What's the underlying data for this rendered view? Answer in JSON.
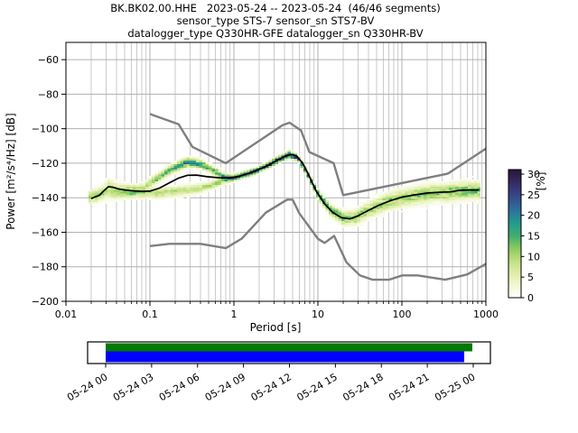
{
  "title": {
    "line1": "BK.BK02.00.HHE   2023-05-24 -- 2023-05-24  (46/46 segments)",
    "line2": "sensor_type STS-7 sensor_sn STS7-BV",
    "line3": "datalogger_type Q330HR-GFE datalogger_sn Q330HR-BV"
  },
  "chart_data": {
    "type": "heatmap",
    "title": "BK.BK02.00.HHE   2023-05-24 -- 2023-05-24  (46/46 segments)",
    "xlabel": "Period [s]",
    "ylabel": "Power [m²/s⁴/Hz] [dB]",
    "x_scale": "log",
    "xlim": [
      0.01,
      1000
    ],
    "ylim": [
      -200,
      -50
    ],
    "grid": "major-y, major+minor-x",
    "x_ticks": [
      {
        "v": 0.01,
        "label": "0.01"
      },
      {
        "v": 0.1,
        "label": "0.1"
      },
      {
        "v": 1,
        "label": "1"
      },
      {
        "v": 10,
        "label": "10"
      },
      {
        "v": 100,
        "label": "100"
      },
      {
        "v": 1000,
        "label": "1000"
      }
    ],
    "y_ticks": [
      {
        "v": -60,
        "label": "−60"
      },
      {
        "v": -80,
        "label": "−80"
      },
      {
        "v": -100,
        "label": "−100"
      },
      {
        "v": -120,
        "label": "−120"
      },
      {
        "v": -140,
        "label": "−140"
      },
      {
        "v": -160,
        "label": "−160"
      },
      {
        "v": -180,
        "label": "−180"
      },
      {
        "v": -200,
        "label": "−200"
      }
    ],
    "colorbar": {
      "label": "[%]",
      "vmax": 31.1,
      "ticks": [
        {
          "v": 0,
          "label": "0"
        },
        {
          "v": 5,
          "label": "5"
        },
        {
          "v": 10,
          "label": "10"
        },
        {
          "v": 15,
          "label": "15"
        },
        {
          "v": 20,
          "label": "20"
        },
        {
          "v": 25,
          "label": "25"
        },
        {
          "v": 30,
          "label": "30"
        }
      ],
      "stops": [
        [
          0,
          "#ffffff"
        ],
        [
          3,
          "#f2f7d4"
        ],
        [
          6,
          "#dfeda8"
        ],
        [
          9,
          "#bfe080"
        ],
        [
          12,
          "#8cca60"
        ],
        [
          15,
          "#3fae6f"
        ],
        [
          18,
          "#259b8b"
        ],
        [
          21,
          "#2d759c"
        ],
        [
          24,
          "#35508e"
        ],
        [
          27,
          "#383273"
        ],
        [
          31.1,
          "#2a1535"
        ]
      ]
    },
    "noise_models": {
      "color": "#7f7f7f",
      "nhnm": [
        [
          0.1,
          -91.5
        ],
        [
          0.22,
          -97.4
        ],
        [
          0.32,
          -110.5
        ],
        [
          0.8,
          -120.0
        ],
        [
          3.8,
          -98.0
        ],
        [
          4.6,
          -96.5
        ],
        [
          6.3,
          -101.0
        ],
        [
          7.9,
          -113.5
        ],
        [
          15.4,
          -120.0
        ],
        [
          20.0,
          -138.5
        ],
        [
          354.8,
          -126.0
        ],
        [
          1000,
          -111.5
        ]
      ],
      "nlnm": [
        [
          0.1,
          -168.0
        ],
        [
          0.17,
          -166.7
        ],
        [
          0.4,
          -166.7
        ],
        [
          0.8,
          -169.2
        ],
        [
          1.24,
          -163.7
        ],
        [
          2.4,
          -148.6
        ],
        [
          4.3,
          -141.1
        ],
        [
          5.0,
          -141.1
        ],
        [
          6.0,
          -149.0
        ],
        [
          10.0,
          -163.8
        ],
        [
          12.0,
          -166.2
        ],
        [
          15.6,
          -162.1
        ],
        [
          21.9,
          -177.5
        ],
        [
          31.6,
          -185.0
        ],
        [
          45.0,
          -187.5
        ],
        [
          70.0,
          -187.5
        ],
        [
          101.0,
          -185.0
        ],
        [
          154.0,
          -185.0
        ],
        [
          328.0,
          -187.5
        ],
        [
          600.0,
          -184.4
        ],
        [
          1000,
          -178.3
        ]
      ]
    },
    "mean_line": {
      "color": "#000000",
      "points": [
        [
          0.02,
          -140.5
        ],
        [
          0.022,
          -139.6
        ],
        [
          0.025,
          -138.6
        ],
        [
          0.028,
          -136.2
        ],
        [
          0.032,
          -133.6
        ],
        [
          0.036,
          -133.9
        ],
        [
          0.042,
          -134.9
        ],
        [
          0.05,
          -135.5
        ],
        [
          0.065,
          -136.1
        ],
        [
          0.08,
          -136.3
        ],
        [
          0.1,
          -136.2
        ],
        [
          0.13,
          -134.4
        ],
        [
          0.17,
          -131.4
        ],
        [
          0.22,
          -128.6
        ],
        [
          0.28,
          -127.0
        ],
        [
          0.36,
          -126.9
        ],
        [
          0.48,
          -127.8
        ],
        [
          0.65,
          -128.4
        ],
        [
          0.85,
          -128.5
        ],
        [
          1.1,
          -127.8
        ],
        [
          1.6,
          -125.4
        ],
        [
          2.3,
          -122.3
        ],
        [
          3.2,
          -118.6
        ],
        [
          4.2,
          -115.6
        ],
        [
          4.9,
          -114.9
        ],
        [
          5.6,
          -115.9
        ],
        [
          6.6,
          -120.0
        ],
        [
          7.8,
          -127.0
        ],
        [
          9.5,
          -136.0
        ],
        [
          12,
          -143.5
        ],
        [
          15,
          -148.5
        ],
        [
          19,
          -151.5
        ],
        [
          24,
          -152.3
        ],
        [
          30,
          -150.5
        ],
        [
          40,
          -147.3
        ],
        [
          55,
          -144.0
        ],
        [
          75,
          -141.5
        ],
        [
          100,
          -139.7
        ],
        [
          140,
          -138.4
        ],
        [
          200,
          -137.3
        ],
        [
          280,
          -136.8
        ],
        [
          380,
          -136.6
        ],
        [
          480,
          -135.7
        ],
        [
          650,
          -135.5
        ],
        [
          830,
          -135.5
        ]
      ]
    },
    "histogram": {
      "db_bin_width": 1,
      "log_period_start": -1.71,
      "log_period_step": 0.0376,
      "n_columns": 124,
      "main_branch": [
        [
          0.0195,
          -139.5,
          11,
          3.0
        ],
        [
          0.024,
          -138.5,
          11,
          3.4
        ],
        [
          0.031,
          -136.0,
          9,
          3.8
        ],
        [
          0.04,
          -136.5,
          11,
          3.4
        ],
        [
          0.06,
          -136.6,
          12,
          3.0
        ],
        [
          0.085,
          -137.0,
          11,
          2.8
        ],
        [
          0.12,
          -137.3,
          10,
          2.6
        ],
        [
          0.18,
          -136.5,
          9,
          2.6
        ],
        [
          0.28,
          -135.5,
          8,
          2.6
        ],
        [
          0.4,
          -134.5,
          8,
          2.4
        ],
        [
          0.55,
          -132.5,
          9,
          2.2
        ],
        [
          0.75,
          -130.0,
          13,
          2.0
        ],
        [
          1.0,
          -128.4,
          22,
          1.6
        ],
        [
          1.5,
          -126.0,
          24,
          1.5
        ],
        [
          2.2,
          -122.8,
          25,
          1.5
        ],
        [
          3.2,
          -118.5,
          26,
          1.6
        ],
        [
          4.6,
          -115.0,
          27,
          1.7
        ],
        [
          5.8,
          -117.0,
          26,
          1.6
        ],
        [
          7.5,
          -126.0,
          24,
          1.7
        ],
        [
          10,
          -138.0,
          21,
          2.0
        ],
        [
          14,
          -147.0,
          17,
          2.6
        ],
        [
          20,
          -151.8,
          14,
          3.2
        ],
        [
          28,
          -151.5,
          12,
          3.6
        ],
        [
          40,
          -147.0,
          11,
          4.0
        ],
        [
          60,
          -143.5,
          11,
          4.2
        ],
        [
          90,
          -140.5,
          11,
          4.3
        ],
        [
          140,
          -138.8,
          11,
          4.4
        ],
        [
          220,
          -137.5,
          12,
          4.4
        ],
        [
          350,
          -137.0,
          12,
          4.4
        ],
        [
          550,
          -136.0,
          13,
          4.3
        ],
        [
          830,
          -136.0,
          13,
          4.0
        ]
      ],
      "secondary_branch": [
        [
          0.028,
          -132.0,
          0,
          2.0
        ],
        [
          0.033,
          -131.5,
          5,
          2.0
        ],
        [
          0.04,
          -132.5,
          2,
          2.0
        ],
        [
          0.06,
          -134.0,
          2,
          2.0
        ],
        [
          0.085,
          -133.5,
          7,
          2.0
        ],
        [
          0.12,
          -129.0,
          13,
          2.2
        ],
        [
          0.18,
          -123.5,
          16,
          2.3
        ],
        [
          0.28,
          -119.3,
          19,
          2.3
        ],
        [
          0.4,
          -120.5,
          17,
          2.1
        ],
        [
          0.55,
          -124.0,
          15,
          2.0
        ],
        [
          0.75,
          -127.5,
          14,
          1.8
        ],
        [
          1.0,
          -128.4,
          0,
          1.8
        ]
      ]
    }
  },
  "timeline": {
    "tick_labels": [
      "05-24 00",
      "05-24 03",
      "05-24 06",
      "05-24 09",
      "05-24 12",
      "05-24 15",
      "05-24 18",
      "05-24 21",
      "05-25 00"
    ],
    "coverage_bar_color": "#007a00",
    "data_bar_color": "#0000ff",
    "coverage_extent": [
      0.0,
      0.9975
    ],
    "data_extent": [
      0.0,
      0.9755
    ]
  }
}
